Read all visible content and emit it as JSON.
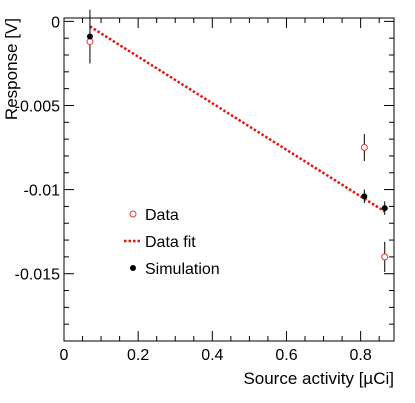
{
  "chart_data": {
    "type": "scatter",
    "xlabel": "Source activity [µCi]",
    "ylabel": "Response [V]",
    "xlim": [
      0,
      0.89
    ],
    "ylim": [
      -0.019,
      0.0002
    ],
    "x_ticks": [
      0,
      0.2,
      0.4,
      0.6,
      0.8
    ],
    "x_tick_labels": [
      "0",
      "0.2",
      "0.4",
      "0.6",
      "0.8"
    ],
    "y_ticks": [
      0,
      -0.005,
      -0.01,
      -0.015
    ],
    "y_tick_labels": [
      "0",
      "-0.005",
      "-0.01",
      "-0.015"
    ],
    "grid": false,
    "legend_position": "middle-left",
    "series": [
      {
        "name": "Data",
        "kind": "points",
        "marker": "open-circle",
        "color": "#e8372b",
        "points": [
          {
            "x": 0.07,
            "y": -0.0012,
            "yerr": 0.0
          },
          {
            "x": 0.81,
            "y": -0.0075,
            "yerr": 0.0
          },
          {
            "x": 0.865,
            "y": -0.014,
            "yerr": 0.0
          }
        ]
      },
      {
        "name": "Data fit",
        "kind": "line",
        "style": "dotted",
        "color": "#e8140c",
        "points": [
          {
            "x": 0.07,
            "y": -0.0003
          },
          {
            "x": 0.865,
            "y": -0.0113
          }
        ]
      },
      {
        "name": "Simulation",
        "kind": "points",
        "marker": "filled-circle",
        "color": "#000000",
        "points": [
          {
            "x": 0.07,
            "y": -0.0009,
            "yerr": 0.0016
          },
          {
            "x": 0.81,
            "y": -0.0104,
            "yerr": 0.0004
          },
          {
            "x": 0.865,
            "y": -0.0111,
            "yerr": 0.0004
          }
        ]
      }
    ],
    "extra_error_bars": [
      {
        "series": "Data",
        "x": 0.81,
        "y": -0.0075,
        "yerr": 0.0008
      },
      {
        "series": "Data",
        "x": 0.865,
        "y": -0.014,
        "yerr": 0.0009
      }
    ],
    "legend": [
      {
        "label": "Data",
        "marker": "open-circle",
        "color": "#e8372b"
      },
      {
        "label": "Data fit",
        "marker": "dotted-line",
        "color": "#e8140c"
      },
      {
        "label": "Simulation",
        "marker": "filled-circle",
        "color": "#000000"
      }
    ]
  }
}
